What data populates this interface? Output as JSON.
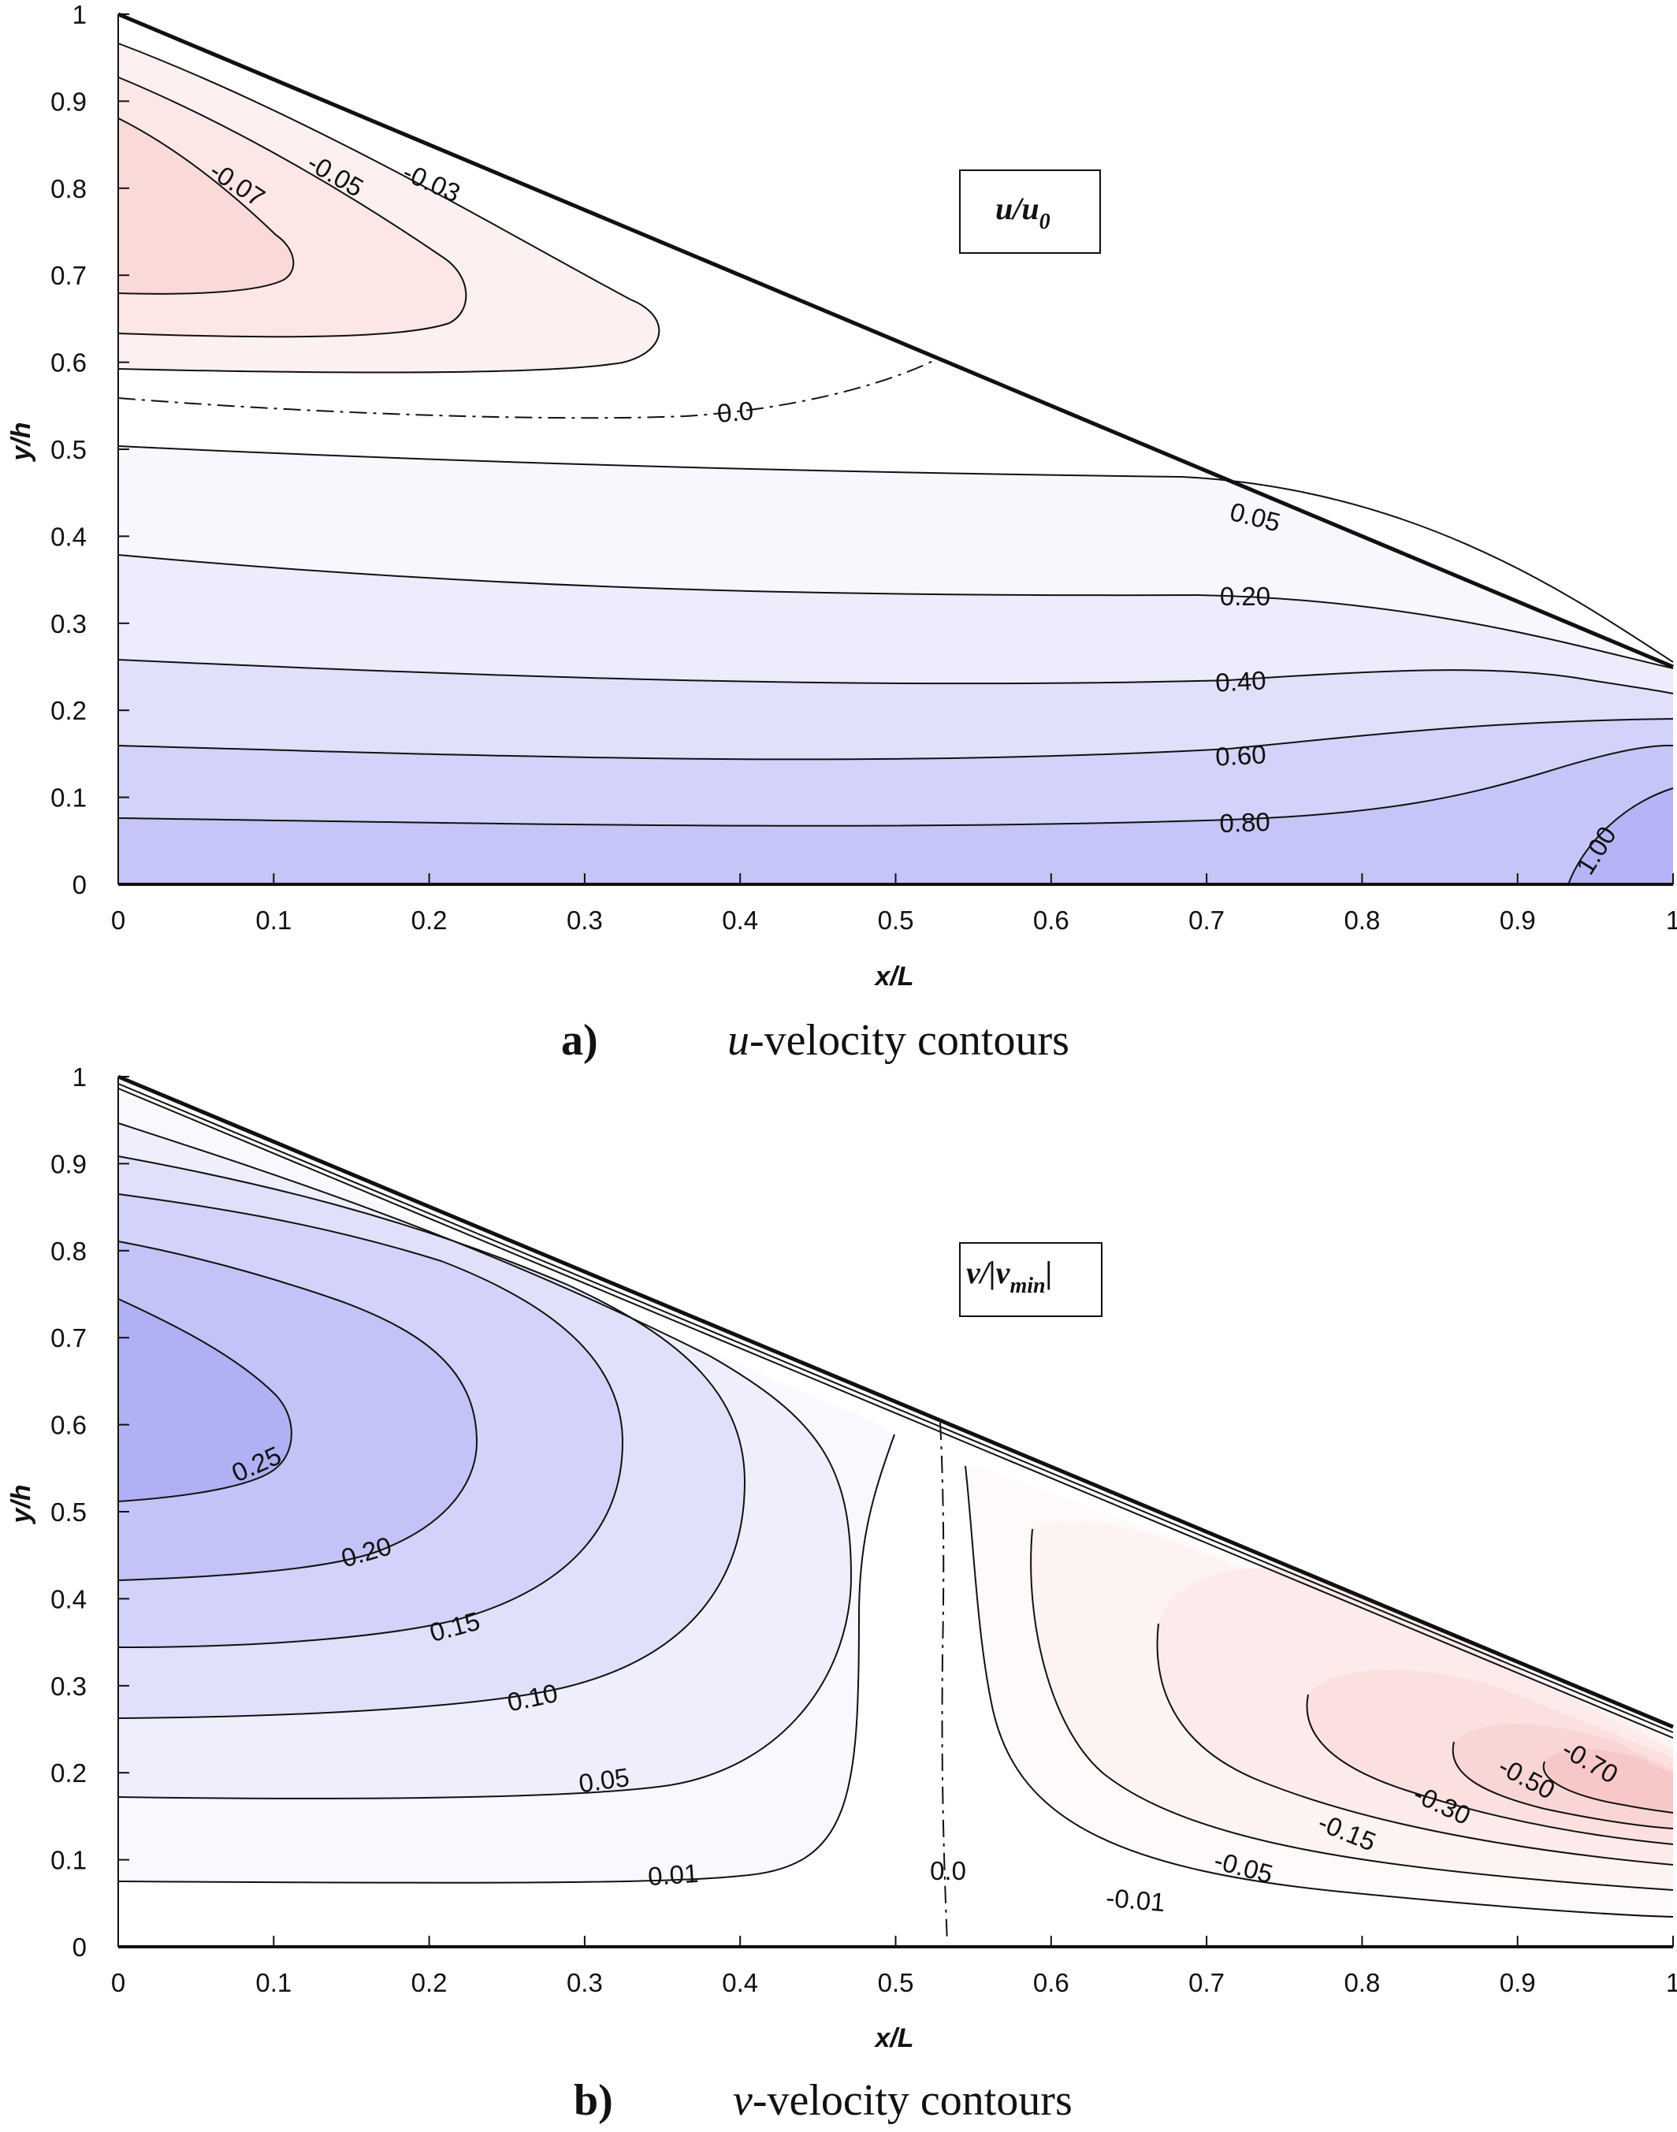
{
  "chart_data": [
    {
      "type": "contour",
      "panel": "a)",
      "caption_italic": "u",
      "caption_rest": "-velocity contours",
      "label_box": {
        "main": "u/u",
        "sub": "0"
      },
      "xlabel": "x/L",
      "ylabel": "y/h",
      "xlim": [
        0,
        1
      ],
      "ylim": [
        0,
        1
      ],
      "xticks": [
        "0",
        "0.1",
        "0.2",
        "0.3",
        "0.4",
        "0.5",
        "0.6",
        "0.7",
        "0.8",
        "0.9",
        "1"
      ],
      "yticks": [
        "0",
        "0.1",
        "0.2",
        "0.3",
        "0.4",
        "0.5",
        "0.6",
        "0.7",
        "0.8",
        "0.9",
        "1"
      ],
      "domain_top_line": [
        [
          0,
          1.0
        ],
        [
          1,
          0.25
        ]
      ],
      "contours": [
        {
          "level": "-0.07",
          "color": "#fad9d9"
        },
        {
          "level": "-0.05",
          "color": "#fce6e6"
        },
        {
          "level": "-0.03",
          "color": "#fdf0f0"
        },
        {
          "level": "0.0",
          "style": "dash-dot"
        },
        {
          "level": "0.05",
          "color": "#f7f7fe"
        },
        {
          "level": "0.20",
          "color": "#ececfc"
        },
        {
          "level": "0.40",
          "color": "#e0e0fb"
        },
        {
          "level": "0.60",
          "color": "#d2d2fa"
        },
        {
          "level": "0.80",
          "color": "#c5c5f8"
        },
        {
          "level": "1.00",
          "color": "#b4b4f6"
        }
      ]
    },
    {
      "type": "contour",
      "panel": "b)",
      "caption_italic": "v",
      "caption_rest": "-velocity contours",
      "label_box": {
        "main": "v/|v",
        "sub": "min",
        "end": "|"
      },
      "xlabel": "x/L",
      "ylabel": "y/h",
      "xlim": [
        0,
        1
      ],
      "ylim": [
        0,
        1
      ],
      "xticks": [
        "0",
        "0.1",
        "0.2",
        "0.3",
        "0.4",
        "0.5",
        "0.6",
        "0.7",
        "0.8",
        "0.9",
        "1"
      ],
      "yticks": [
        "0",
        "0.1",
        "0.2",
        "0.3",
        "0.4",
        "0.5",
        "0.6",
        "0.7",
        "0.8",
        "0.9",
        "1"
      ],
      "domain_top_line": [
        [
          0,
          1.0
        ],
        [
          1,
          0.25
        ]
      ],
      "contours": [
        {
          "level": "0.25",
          "color": "#b0b0f5"
        },
        {
          "level": "0.20",
          "color": "#c3c3f8"
        },
        {
          "level": "0.15",
          "color": "#d2d2fa"
        },
        {
          "level": "0.10",
          "color": "#e0e0fb"
        },
        {
          "level": "0.05",
          "color": "#eeeefd"
        },
        {
          "level": "0.01",
          "color": "#f8f8fe"
        },
        {
          "level": "0.0",
          "style": "dash-dot"
        },
        {
          "level": "-0.01",
          "color": "#fffafa"
        },
        {
          "level": "-0.05",
          "color": "#fef3f3"
        },
        {
          "level": "-0.15",
          "color": "#fdeaea"
        },
        {
          "level": "-0.30",
          "color": "#fce0e0"
        },
        {
          "level": "-0.50",
          "color": "#fad5d5"
        },
        {
          "level": "-0.70",
          "color": "#f8c8c8"
        }
      ]
    }
  ]
}
